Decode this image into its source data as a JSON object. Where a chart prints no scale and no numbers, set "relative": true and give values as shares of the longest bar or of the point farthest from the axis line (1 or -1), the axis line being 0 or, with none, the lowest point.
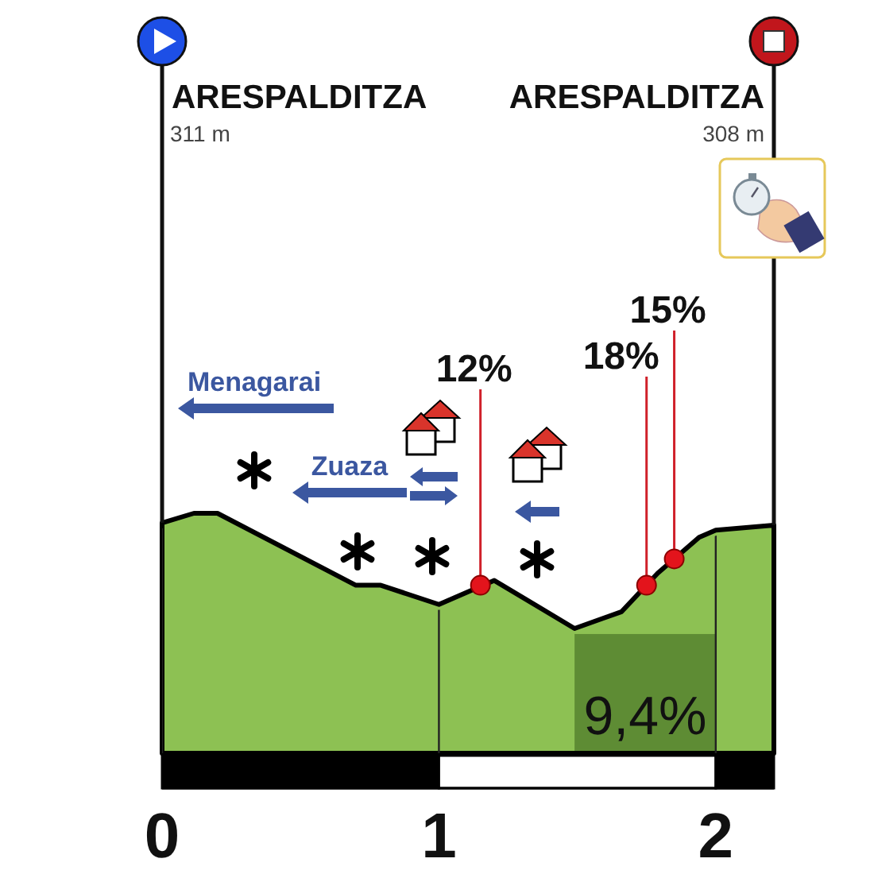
{
  "chart_data": {
    "type": "area",
    "relative": true,
    "color": "#8dc153",
    "x": [
      0,
      0.115,
      0.2,
      0.7,
      0.79,
      1.0,
      1.2,
      1.49,
      1.66,
      1.79,
      1.94,
      2.0,
      2.21
    ],
    "values": [
      0.96,
      1.0,
      1.0,
      0.7,
      0.7,
      0.62,
      0.72,
      0.52,
      0.59,
      0.75,
      0.9,
      0.93,
      0.95
    ],
    "xlim": [
      0,
      2.21
    ],
    "xticks": [
      0,
      1,
      2
    ],
    "grid": "x",
    "ref_lines": [
      {
        "axis": "x",
        "value": 0,
        "label": "ARESPALDITZA"
      },
      {
        "axis": "x",
        "value": 2.21,
        "label": "ARESPALDITZA"
      }
    ],
    "bands": [
      {
        "axis": "x",
        "from": 1.49,
        "to": 2.0,
        "label": "9,4%",
        "color": "#5e8c34"
      }
    ],
    "annotations": [
      "311 m",
      "308 m",
      "Menagarai",
      "Zuaza",
      {
        "text": "12%",
        "x": 1.15,
        "y": 0.7
      },
      {
        "text": "18%",
        "x": 1.75,
        "y": 0.7
      },
      {
        "text": "15%",
        "x": 1.85,
        "y": 0.81
      }
    ]
  }
}
